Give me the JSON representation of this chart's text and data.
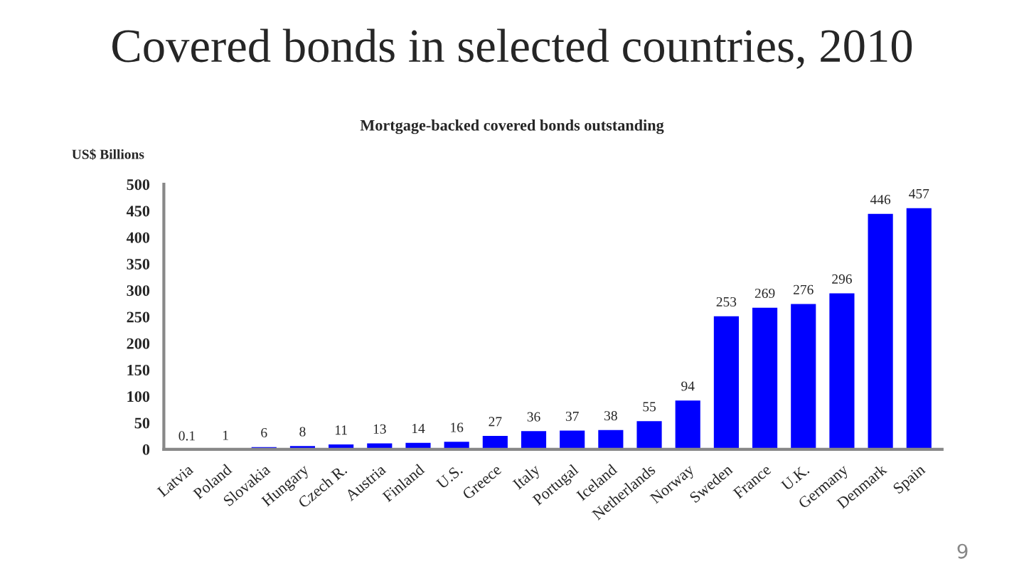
{
  "chart_data": {
    "type": "bar",
    "title": "Covered bonds in selected countries, 2010",
    "subtitle": "Mortgage-backed covered bonds outstanding",
    "ylabel": "US$ Billions",
    "categories": [
      "Latvia",
      "Poland",
      "Slovakia",
      "Hungary",
      "Czech R.",
      "Austria",
      "Finland",
      "U.S.",
      "Greece",
      "Italy",
      "Portugal",
      "Iceland",
      "Netherlands",
      "Norway",
      "Sweden",
      "France",
      "U.K.",
      "Germany",
      "Denmark",
      "Spain"
    ],
    "values": [
      0.1,
      1,
      6,
      8,
      11,
      13,
      14,
      16,
      27,
      36,
      37,
      38,
      55,
      94,
      253,
      269,
      276,
      296,
      446,
      457
    ],
    "color": "#0000ff",
    "data_labels": true,
    "ylim": [
      0,
      500
    ],
    "yticks": [
      0,
      50,
      100,
      150,
      200,
      250,
      300,
      350,
      400,
      450,
      500
    ],
    "grid": false,
    "legend": false,
    "annotations": [
      "9"
    ]
  }
}
